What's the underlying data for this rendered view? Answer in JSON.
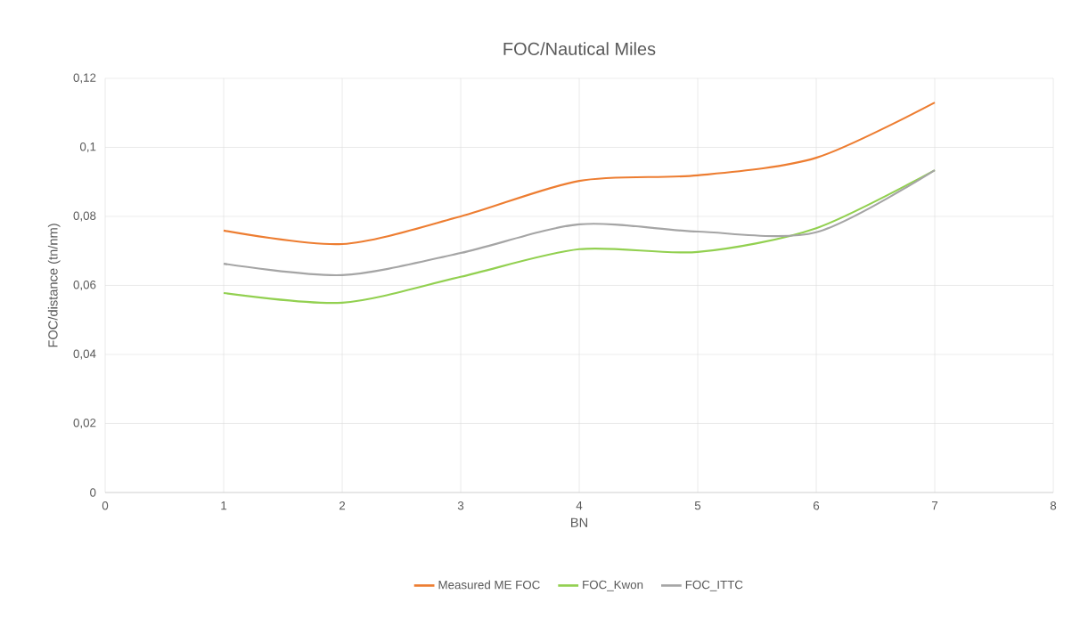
{
  "chart_data": {
    "type": "line",
    "title": "FOC/Nautical Miles",
    "xlabel": "BN",
    "ylabel": "FOC/distance (tn/nm)",
    "x": [
      1,
      2,
      3,
      4,
      5,
      6,
      7
    ],
    "series": [
      {
        "name": "Measured ME FOC",
        "color": "#ed7d31",
        "values": [
          0.0759,
          0.072,
          0.08,
          0.0903,
          0.0919,
          0.097,
          0.113
        ]
      },
      {
        "name": "FOC_Kwon",
        "color": "#92d050",
        "values": [
          0.0578,
          0.055,
          0.0625,
          0.0705,
          0.0697,
          0.0766,
          0.0934
        ]
      },
      {
        "name": "FOC_ITTC",
        "color": "#a5a5a5",
        "values": [
          0.0663,
          0.063,
          0.0694,
          0.0777,
          0.0756,
          0.0754,
          0.0934
        ]
      }
    ],
    "xlim": [
      0,
      8
    ],
    "xticks": [
      0,
      1,
      2,
      3,
      4,
      5,
      6,
      7,
      8
    ],
    "ylim": [
      0,
      0.12
    ],
    "yticks": [
      0,
      {
        "value": 0.02,
        "label": "0,02"
      },
      {
        "value": 0.04,
        "label": "0,04"
      },
      {
        "value": 0.06,
        "label": "0,06"
      },
      {
        "value": 0.08,
        "label": "0,08"
      },
      {
        "value": 0.1,
        "label": "0,1"
      },
      {
        "value": 0.12,
        "label": "0,12"
      }
    ],
    "grid": true,
    "legend": "bottom",
    "marker": "none",
    "line_style": "solid"
  }
}
